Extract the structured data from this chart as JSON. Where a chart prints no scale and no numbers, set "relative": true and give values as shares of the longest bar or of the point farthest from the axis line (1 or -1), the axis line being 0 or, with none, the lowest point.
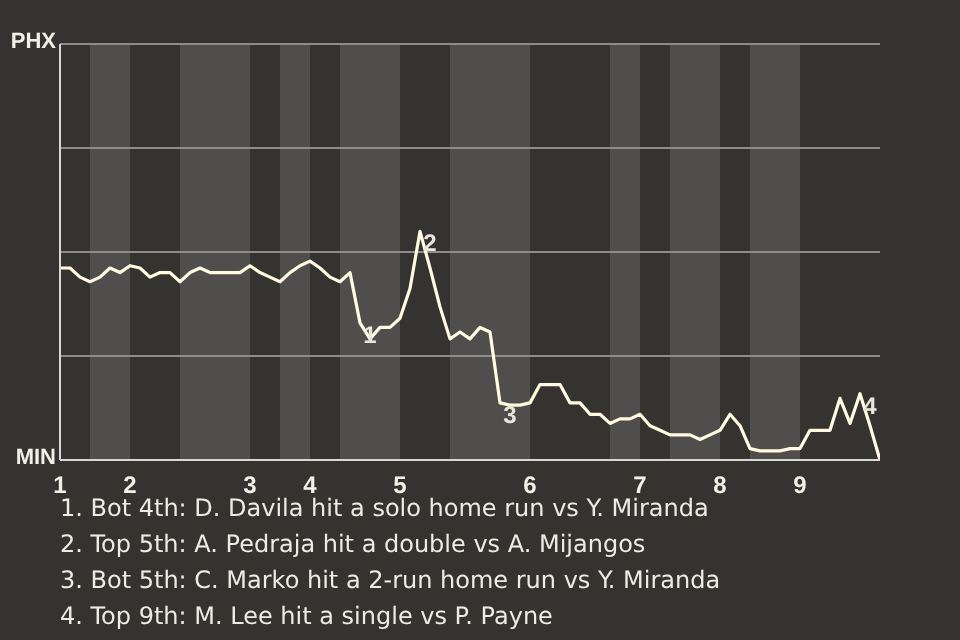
{
  "chart_data": {
    "type": "line",
    "relative": true,
    "categories": [
      "1",
      null,
      null,
      null,
      null,
      null,
      null,
      "2",
      null,
      null,
      null,
      null,
      null,
      null,
      null,
      null,
      null,
      null,
      null,
      "3",
      null,
      null,
      null,
      null,
      null,
      "4",
      null,
      null,
      null,
      null,
      null,
      null,
      null,
      null,
      "5",
      null,
      null,
      null,
      null,
      null,
      null,
      null,
      null,
      null,
      null,
      null,
      null,
      "6",
      null,
      null,
      null,
      null,
      null,
      null,
      null,
      null,
      null,
      null,
      "7",
      null,
      null,
      null,
      null,
      null,
      null,
      null,
      "8",
      null,
      null,
      null,
      null,
      null,
      null,
      null,
      "9",
      null,
      null,
      null,
      null,
      null,
      null,
      null,
      null
    ],
    "series": [
      {
        "color": "#fffbe0",
        "values": [
          0.84,
          0.84,
          0.8,
          0.78,
          0.8,
          0.84,
          0.82,
          0.85,
          0.84,
          0.8,
          0.82,
          0.82,
          0.78,
          0.82,
          0.84,
          0.82,
          0.82,
          0.82,
          0.82,
          0.85,
          0.82,
          0.8,
          0.78,
          0.82,
          0.85,
          0.87,
          0.84,
          0.8,
          0.78,
          0.82,
          0.6,
          0.53,
          0.58,
          0.58,
          0.62,
          0.75,
          1,
          0.84,
          0.67,
          0.53,
          0.56,
          0.53,
          0.58,
          0.56,
          0.25,
          0.24,
          0.24,
          0.25,
          0.33,
          0.33,
          0.33,
          0.25,
          0.25,
          0.2,
          0.2,
          0.16,
          0.18,
          0.18,
          0.2,
          0.15,
          0.13,
          0.11,
          0.11,
          0.11,
          0.09,
          0.11,
          0.13,
          0.2,
          0.15,
          0.05,
          0.04,
          0.04,
          0.04,
          0.05,
          0.05,
          0.13,
          0.13,
          0.13,
          0.27,
          0.16,
          0.29,
          0.15,
          0
        ]
      }
    ],
    "ylim": [
      0,
      1.82
    ],
    "grid": "y",
    "annotations": [
      "PHX",
      "MIN",
      {
        "text": "1",
        "y": 0.6
      },
      {
        "text": "2",
        "y": 1
      },
      {
        "text": "3",
        "y": 0.25
      },
      {
        "text": "4",
        "y": 0.29
      },
      "1. Bot 4th: D. Davila hit a solo home run vs Y. Miranda",
      "2. Top 5th: A. Pedraja hit a double vs A. Mijangos",
      "3. Bot 5th: C. Marko hit a 2-run home run vs Y. Miranda",
      "4. Top 9th: M. Lee hit a single vs P. Payne"
    ]
  }
}
